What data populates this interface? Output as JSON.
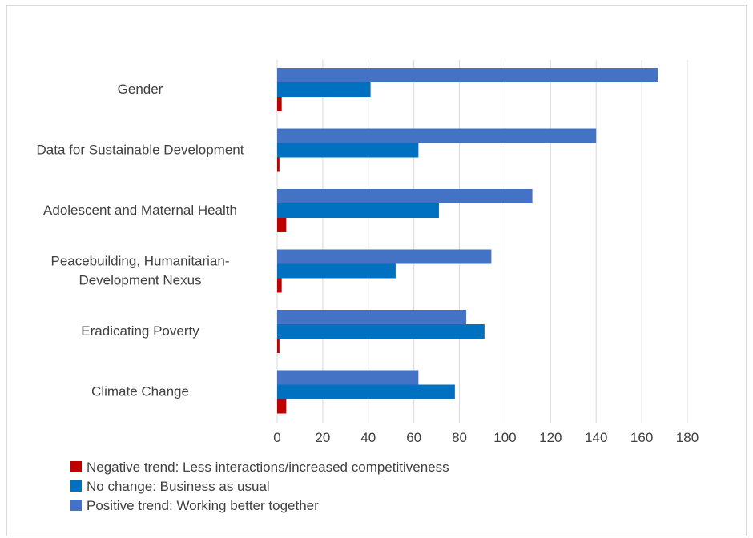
{
  "chart_data": {
    "type": "bar",
    "orientation": "horizontal",
    "title": "",
    "xlabel": "",
    "ylabel": "",
    "xlim": [
      0,
      180
    ],
    "x_ticks": [
      0,
      20,
      40,
      60,
      80,
      100,
      120,
      140,
      160,
      180
    ],
    "grid": "vertical",
    "legend_position": "bottom-left",
    "categories": [
      [
        "Gender"
      ],
      [
        "Data for Sustainable Development"
      ],
      [
        "Adolescent and Maternal Health"
      ],
      [
        "Peacebuilding, Humanitarian-",
        "Development Nexus"
      ],
      [
        "Eradicating Poverty"
      ],
      [
        "Climate Change"
      ]
    ],
    "series": [
      {
        "name": "Positive trend: Working better together",
        "color": "#4472c4",
        "values": [
          167,
          140,
          112,
          94,
          83,
          62
        ]
      },
      {
        "name": "No change: Business as usual",
        "color": "#0070c0",
        "values": [
          41,
          62,
          71,
          52,
          91,
          78
        ]
      },
      {
        "name": "Negative trend: Less interactions/increased competitiveness",
        "color": "#c00000",
        "values": [
          2,
          1,
          4,
          2,
          1,
          4
        ]
      }
    ],
    "legend_order": [
      2,
      1,
      0
    ]
  }
}
